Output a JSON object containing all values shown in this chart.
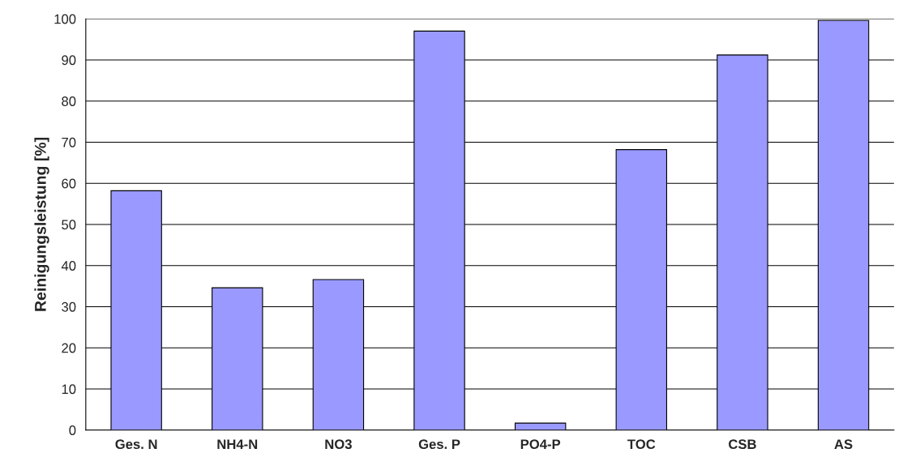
{
  "chart_data": {
    "type": "bar",
    "ylabel": "Reinigungsleistung [%]",
    "categories": [
      "Ges. N",
      "NH4-N",
      "NO3",
      "Ges. P",
      "PO4-P",
      "TOC",
      "CSB",
      "AS"
    ],
    "values": [
      58.2,
      34.6,
      36.6,
      97,
      1.7,
      68.2,
      91.2,
      99.6
    ],
    "color": "#9999ff",
    "ylim": [
      0,
      100
    ],
    "yticks": [
      0,
      10,
      20,
      30,
      40,
      50,
      60,
      70,
      80,
      90,
      100
    ],
    "grid": "y"
  }
}
